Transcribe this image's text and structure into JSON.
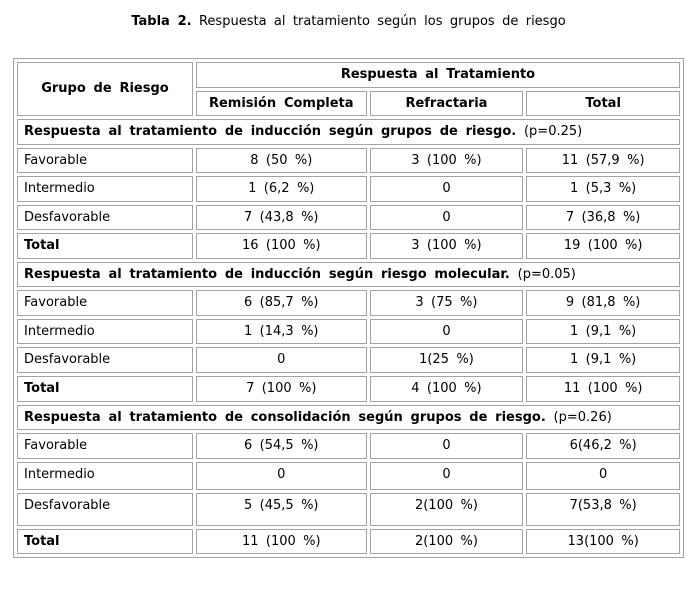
{
  "title": {
    "label": "Tabla 2.",
    "text": "Respuesta al tratamiento según los grupos de riesgo"
  },
  "table": {
    "header": {
      "group": "Grupo de Riesgo",
      "response": "Respuesta al Tratamiento",
      "sub": [
        "Remisión Completa",
        "Refractaria",
        "Total"
      ]
    },
    "sections": [
      {
        "heading": "Respuesta al tratamiento de inducción según grupos de riesgo.",
        "p_value": "(p=0.25)",
        "rows": [
          {
            "label": "Favorable",
            "values": [
              "8 (50 %)",
              "3 (100 %)",
              "11 (57,9 %)"
            ]
          },
          {
            "label": "Intermedio",
            "values": [
              "1 (6,2 %)",
              "0",
              "1 (5,3 %)"
            ]
          },
          {
            "label": "Desfavorable",
            "values": [
              "7 (43,8 %)",
              "0",
              "7 (36,8 %)"
            ]
          },
          {
            "label": "Total",
            "values": [
              "16 (100 %)",
              "3 (100 %)",
              "19 (100 %)"
            ]
          }
        ]
      },
      {
        "heading": "Respuesta al tratamiento de inducción según riesgo molecular.",
        "p_value": "(p=0.05)",
        "rows": [
          {
            "label": "Favorable",
            "values": [
              "6 (85,7 %)",
              "3 (75 %)",
              "9 (81,8 %)"
            ]
          },
          {
            "label": "Intermedio",
            "values": [
              "1 (14,3 %)",
              "0",
              "1 (9,1 %)"
            ]
          },
          {
            "label": "Desfavorable",
            "values": [
              "0",
              "1(25 %)",
              "1 (9,1 %)"
            ]
          },
          {
            "label": "Total",
            "values": [
              "7 (100 %)",
              "4 (100 %)",
              "11 (100 %)"
            ]
          }
        ]
      },
      {
        "heading": "Respuesta al tratamiento de consolidación según grupos de riesgo.",
        "p_value": "(p=0.26)",
        "rows": [
          {
            "label": "Favorable",
            "values": [
              "6 (54,5 %)",
              "0",
              "6(46,2 %)"
            ]
          },
          {
            "label": "Intermedio",
            "values": [
              "0",
              "0",
              "0"
            ]
          },
          {
            "label": "Desfavorable",
            "values": [
              "5 (45,5 %)",
              "2(100 %)",
              "7(53,8 %)"
            ]
          },
          {
            "label": "Total",
            "values": [
              "11 (100 %)",
              "2(100 %)",
              "13(100 %)"
            ]
          }
        ]
      }
    ]
  },
  "colors": {
    "border": "#a3a3a3",
    "text": "#000000",
    "background": "#ffffff"
  }
}
